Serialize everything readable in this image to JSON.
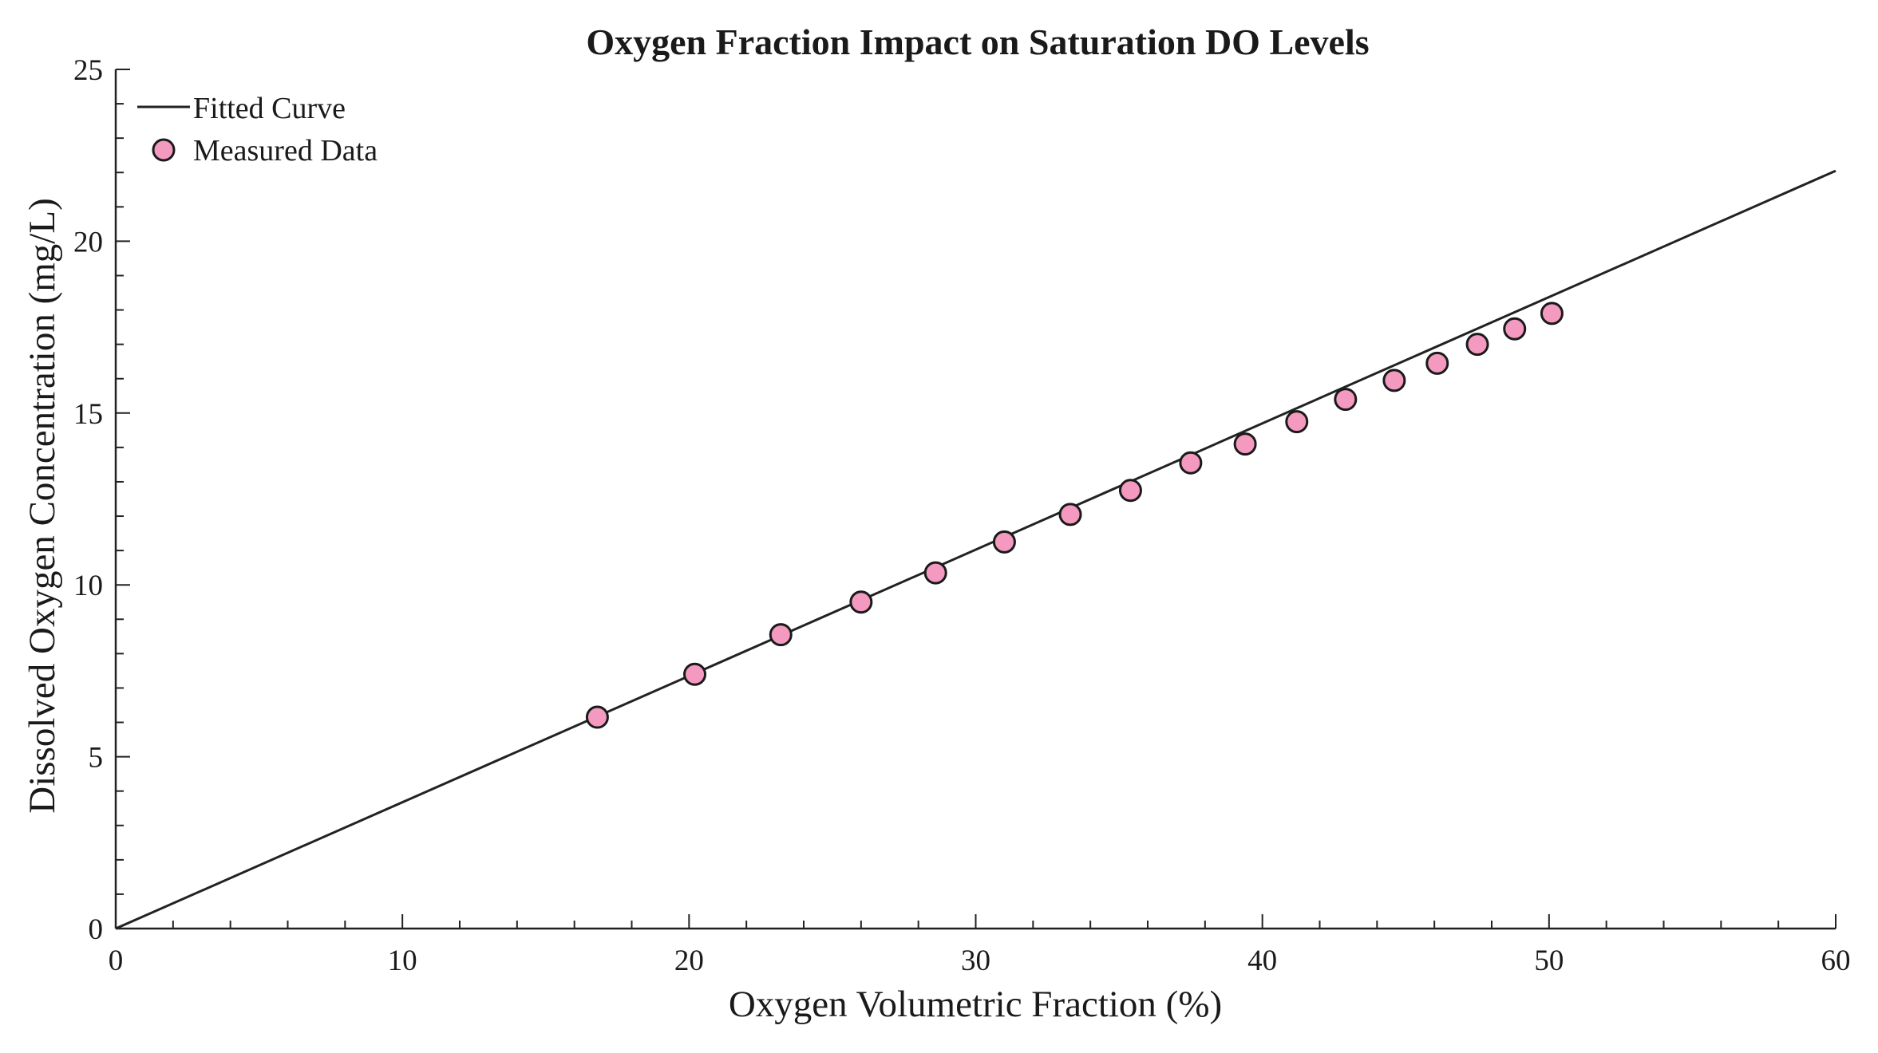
{
  "chart_data": {
    "type": "scatter",
    "title": "Oxygen Fraction Impact on Saturation DO Levels",
    "xlabel": "Oxygen Volumetric Fraction (%)",
    "ylabel": "Dissolved Oxygen Concentration (mg/L)",
    "xlim": [
      0,
      60
    ],
    "ylim": [
      0,
      25
    ],
    "x_major_ticks": [
      0,
      10,
      20,
      30,
      40,
      50,
      60
    ],
    "x_minor_step": 2,
    "y_major_ticks": [
      0,
      5,
      10,
      15,
      20,
      25
    ],
    "y_minor_step": 1,
    "grid": false,
    "legend_position": "top-left",
    "series": [
      {
        "name": "Fitted Curve",
        "kind": "line",
        "color": "#222222",
        "x": [
          0,
          60
        ],
        "y": [
          0,
          22.05
        ]
      },
      {
        "name": "Measured Data",
        "kind": "scatter",
        "color": "#f49ac1",
        "edge_color": "#1a1a1a",
        "x": [
          16.8,
          20.2,
          23.2,
          26.0,
          28.6,
          31.0,
          33.3,
          35.4,
          37.5,
          39.4,
          41.2,
          42.9,
          44.6,
          46.1,
          47.5,
          48.8,
          50.1
        ],
        "y": [
          6.15,
          7.4,
          8.55,
          9.5,
          10.35,
          11.25,
          12.05,
          12.75,
          13.55,
          14.1,
          14.75,
          15.4,
          15.95,
          16.45,
          17.0,
          17.45,
          17.9
        ]
      }
    ]
  }
}
